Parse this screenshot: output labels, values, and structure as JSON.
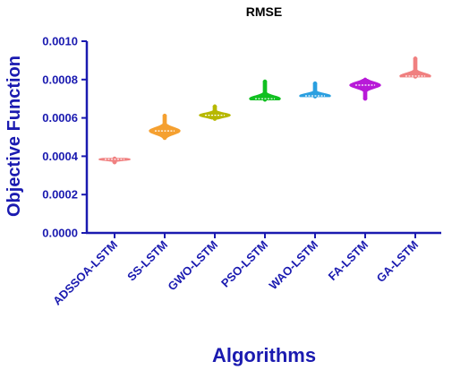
{
  "chart_data": {
    "type": "violin",
    "title": "RMSE",
    "xlabel": "Algorithms",
    "ylabel": "Objective Function",
    "ylim": [
      0,
      0.001
    ],
    "yticks": [
      0,
      0.0002,
      0.0004,
      0.0006,
      0.0008,
      0.001
    ],
    "ytick_labels": [
      "0.0000",
      "0.0002",
      "0.0004",
      "0.0006",
      "0.0008",
      "0.0010"
    ],
    "categories": [
      "ADSSOA-LSTM",
      "SS-LSTM",
      "GWO-LSTM",
      "PSO-LSTM",
      "WAO-LSTM",
      "FA-LSTM",
      "GA-LSTM"
    ],
    "series": [
      {
        "category": "ADSSOA-LSTM",
        "color": "#f08080",
        "min": 0.000368,
        "median": 0.000384,
        "max": 0.000388
      },
      {
        "category": "SS-LSTM",
        "color": "#f5a030",
        "min": 0.000495,
        "median": 0.000532,
        "max": 0.000612
      },
      {
        "category": "GWO-LSTM",
        "color": "#b7b800",
        "min": 0.000595,
        "median": 0.000614,
        "max": 0.00066
      },
      {
        "category": "PSO-LSTM",
        "color": "#10c020",
        "min": 0.000695,
        "median": 0.0007,
        "max": 0.00079
      },
      {
        "category": "WAO-LSTM",
        "color": "#2a9fe0",
        "min": 0.000712,
        "median": 0.000715,
        "max": 0.00078
      },
      {
        "category": "FA-LSTM",
        "color": "#b81ad8",
        "min": 0.0007,
        "median": 0.000771,
        "max": 0.0008
      },
      {
        "category": "GA-LSTM",
        "color": "#f08080",
        "min": 0.000815,
        "median": 0.000818,
        "max": 0.00091
      }
    ],
    "grid": false,
    "legend": "none"
  }
}
